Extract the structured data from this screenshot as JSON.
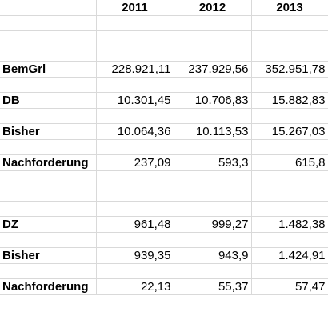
{
  "header": {
    "years": [
      "2011",
      "2012",
      "2013"
    ]
  },
  "rows": {
    "bemgrl": {
      "label": "BemGrl",
      "values": [
        "228.921,11",
        "237.929,56",
        "352.951,78"
      ]
    },
    "db": {
      "label": "DB",
      "values": [
        "10.301,45",
        "10.706,83",
        "15.882,83"
      ]
    },
    "bisher1": {
      "label": "Bisher",
      "values": [
        "10.064,36",
        "10.113,53",
        "15.267,03"
      ]
    },
    "nachforderung1": {
      "label": "Nachforderung",
      "values": [
        "237,09",
        "593,3",
        "615,8"
      ]
    },
    "dz": {
      "label": "DZ",
      "values": [
        "961,48",
        "999,27",
        "1.482,38"
      ]
    },
    "bisher2": {
      "label": "Bisher",
      "values": [
        "939,35",
        "943,9",
        "1.424,91"
      ]
    },
    "nachforderung2": {
      "label": "Nachforderung",
      "values": [
        "22,13",
        "55,37",
        "57,47"
      ]
    }
  }
}
